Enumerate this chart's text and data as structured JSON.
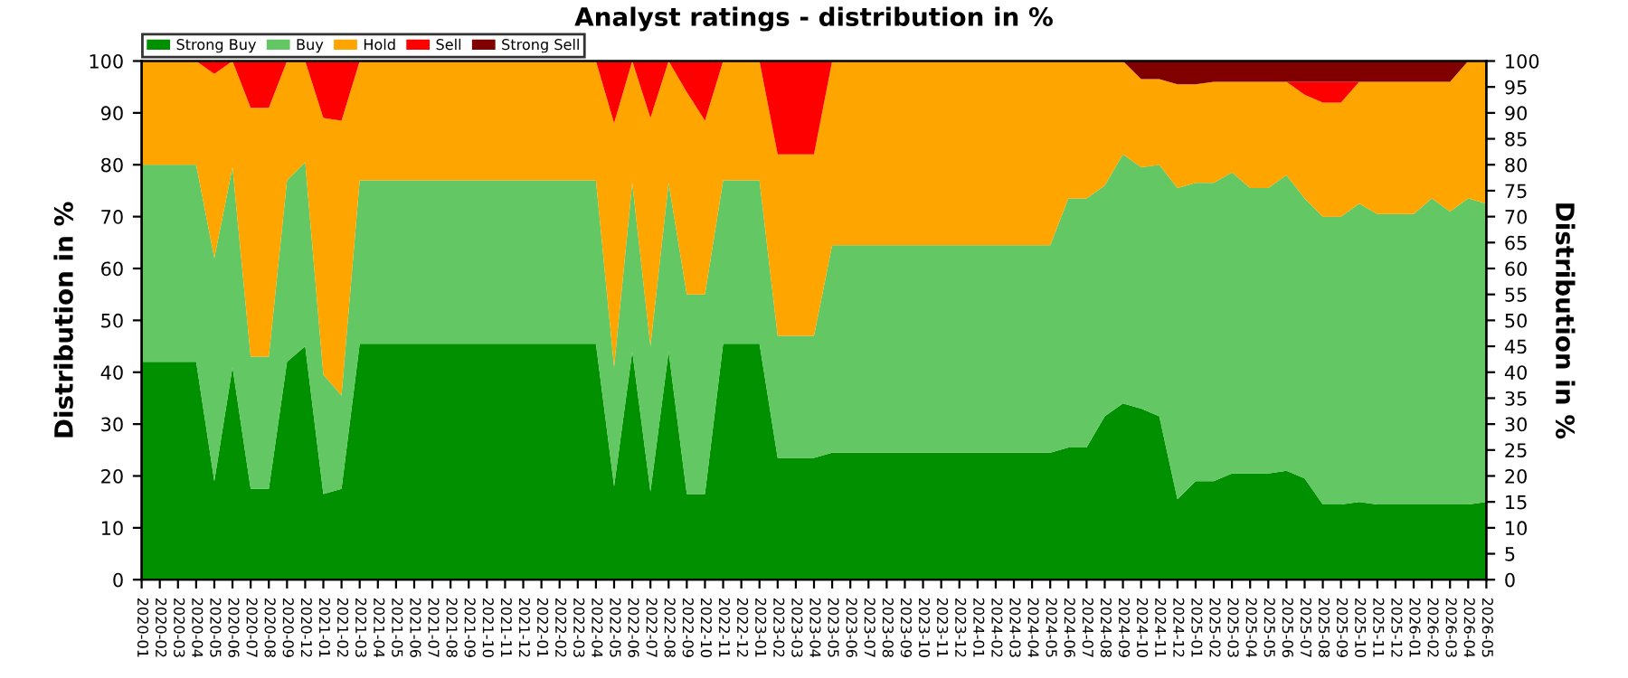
{
  "chart_data": {
    "type": "area",
    "stacked": true,
    "title": "Analyst ratings - distribution in %",
    "ylabel": "Distribution in %",
    "y2label": "Distribution in %",
    "categories": [
      "2020-01",
      "2020-02",
      "2020-03",
      "2020-04",
      "2020-05",
      "2020-06",
      "2020-07",
      "2020-08",
      "2020-09",
      "2020-12",
      "2021-01",
      "2021-02",
      "2021-03",
      "2021-04",
      "2021-05",
      "2021-06",
      "2021-07",
      "2021-08",
      "2021-09",
      "2021-10",
      "2021-11",
      "2021-12",
      "2022-01",
      "2022-02",
      "2022-03",
      "2022-04",
      "2022-05",
      "2022-06",
      "2022-07",
      "2022-08",
      "2022-09",
      "2022-10",
      "2022-11",
      "2022-12",
      "2023-01",
      "2023-02",
      "2023-03",
      "2023-04",
      "2023-05",
      "2023-06",
      "2023-07",
      "2023-08",
      "2023-09",
      "2023-10",
      "2023-11",
      "2023-12",
      "2024-01",
      "2024-02",
      "2024-03",
      "2024-04",
      "2024-05",
      "2024-06",
      "2024-07",
      "2024-08",
      "2024-09",
      "2024-10",
      "2024-11",
      "2024-12",
      "2025-01",
      "2025-02",
      "2025-03",
      "2025-04",
      "2025-05",
      "2025-06",
      "2025-07",
      "2025-08",
      "2025-09",
      "2025-10",
      "2025-11",
      "2025-12",
      "2026-01",
      "2026-02",
      "2026-03",
      "2026-04",
      "2026-05"
    ],
    "series": [
      {
        "name": "Strong Buy",
        "color": "#009000",
        "values": [
          42,
          42,
          42,
          42,
          19,
          41,
          17.5,
          17.5,
          42,
          45,
          16.5,
          17.5,
          45.5,
          45.5,
          45.5,
          45.5,
          45.5,
          45.5,
          45.5,
          45.5,
          45.5,
          45.5,
          45.5,
          45.5,
          45.5,
          45.5,
          18,
          44,
          17,
          44,
          16.5,
          16.5,
          45.5,
          45.5,
          45.5,
          23.5,
          23.5,
          23.5,
          24.5,
          24.5,
          24.5,
          24.5,
          24.5,
          24.5,
          24.5,
          24.5,
          24.5,
          24.5,
          24.5,
          24.5,
          24.5,
          25.5,
          25.5,
          31.5,
          34,
          33,
          31.5,
          15.5,
          19,
          19,
          20.5,
          20.5,
          20.5,
          21,
          19.5,
          14.5,
          14.5,
          15,
          14.5,
          14.5,
          14.5,
          14.5,
          14.5,
          14.5,
          15
        ]
      },
      {
        "name": "Buy",
        "color": "#63c763",
        "values": [
          38,
          38,
          38,
          38,
          43,
          38.5,
          25.5,
          25.5,
          35,
          35.5,
          23,
          18,
          31.5,
          31.5,
          31.5,
          31.5,
          31.5,
          31.5,
          31.5,
          31.5,
          31.5,
          31.5,
          31.5,
          31.5,
          31.5,
          31.5,
          23,
          32.5,
          28,
          32.5,
          38.5,
          38.5,
          31.5,
          31.5,
          31.5,
          23.5,
          23.5,
          23.5,
          40,
          40,
          40,
          40,
          40,
          40,
          40,
          40,
          40,
          40,
          40,
          40,
          40,
          48,
          48,
          44.5,
          48,
          46.5,
          48.5,
          60,
          57.5,
          57.5,
          58,
          55,
          55,
          57,
          54,
          55.5,
          55.5,
          57.5,
          56,
          56,
          56,
          59,
          56.5,
          59,
          57.5
        ]
      },
      {
        "name": "Hold",
        "color": "#ffa500",
        "values": [
          20,
          20,
          20,
          20,
          35.5,
          20.5,
          48,
          48,
          23,
          19.5,
          49.5,
          53,
          23,
          23,
          23,
          23,
          23,
          23,
          23,
          23,
          23,
          23,
          23,
          23,
          23,
          23,
          47,
          23.5,
          44,
          23.5,
          39,
          33.5,
          23,
          23,
          23,
          35,
          35,
          35,
          35.5,
          35.5,
          35.5,
          35.5,
          35.5,
          35.5,
          35.5,
          35.5,
          35.5,
          35.5,
          35.5,
          35.5,
          35.5,
          26.5,
          26.5,
          24,
          18,
          17,
          16.5,
          20,
          19,
          19.5,
          17.5,
          20.5,
          20.5,
          18,
          20,
          22,
          22,
          23.5,
          25.5,
          25.5,
          25.5,
          22.5,
          25,
          26.5,
          27.5
        ]
      },
      {
        "name": "Sell",
        "color": "#ff0000",
        "values": [
          0,
          0,
          0,
          0,
          2.5,
          0,
          9,
          9,
          0,
          0,
          11,
          11.5,
          0,
          0,
          0,
          0,
          0,
          0,
          0,
          0,
          0,
          0,
          0,
          0,
          0,
          0,
          12,
          0,
          11,
          0,
          6,
          11.5,
          0,
          0,
          0,
          18,
          18,
          18,
          0,
          0,
          0,
          0,
          0,
          0,
          0,
          0,
          0,
          0,
          0,
          0,
          0,
          0,
          0,
          0,
          0,
          0,
          0,
          0,
          0,
          0,
          0,
          0,
          0,
          0,
          2.5,
          4,
          4,
          0,
          0,
          0,
          0,
          0,
          0,
          0,
          0
        ]
      },
      {
        "name": "Strong Sell",
        "color": "#800000",
        "values": [
          0,
          0,
          0,
          0,
          0,
          0,
          0,
          0,
          0,
          0,
          0,
          0,
          0,
          0,
          0,
          0,
          0,
          0,
          0,
          0,
          0,
          0,
          0,
          0,
          0,
          0,
          0,
          0,
          0,
          0,
          0,
          0,
          0,
          0,
          0,
          0,
          0,
          0,
          0,
          0,
          0,
          0,
          0,
          0,
          0,
          0,
          0,
          0,
          0,
          0,
          0,
          0,
          0,
          0,
          0,
          3.5,
          3.5,
          4.5,
          4.5,
          4,
          4,
          4,
          4,
          4,
          4,
          4,
          4,
          4,
          4,
          4,
          4,
          4,
          4,
          0,
          0
        ]
      }
    ],
    "ylim": [
      0,
      100
    ],
    "yticks": [
      0,
      10,
      20,
      30,
      40,
      50,
      60,
      70,
      80,
      90,
      100
    ],
    "y2lim": [
      0,
      100
    ],
    "y2ticks": [
      0,
      5,
      10,
      15,
      20,
      25,
      30,
      35,
      40,
      45,
      50,
      55,
      60,
      65,
      70,
      75,
      80,
      85,
      90,
      95,
      100
    ],
    "grid": "y",
    "legend": "top left"
  }
}
